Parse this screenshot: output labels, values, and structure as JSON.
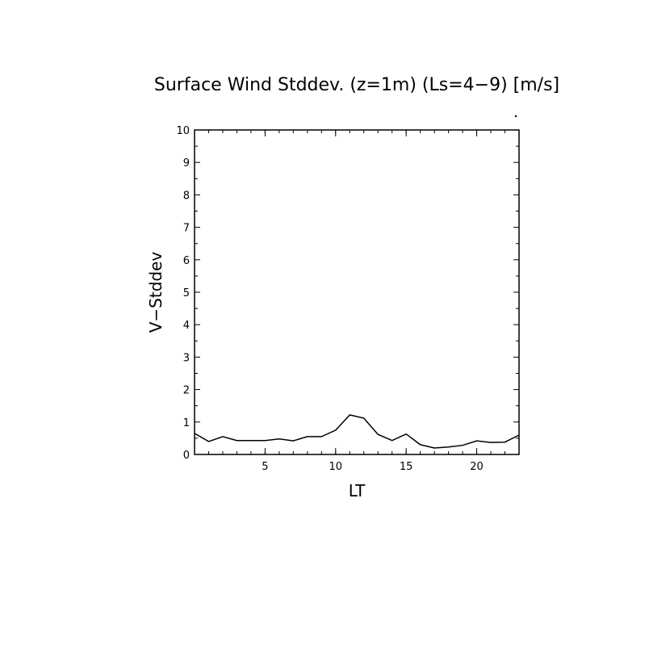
{
  "chart_data": {
    "type": "line",
    "title": "Surface Wind Stddev. (z=1m) (Ls=4−9) [m/s]",
    "xlabel": "LT",
    "ylabel": "V−Stddev",
    "xlim": [
      0,
      23
    ],
    "ylim": [
      0,
      10
    ],
    "xticks": [
      5,
      10,
      15,
      20
    ],
    "yticks": [
      0,
      1,
      2,
      3,
      4,
      5,
      6,
      7,
      8,
      9,
      10
    ],
    "grid": false,
    "series": [
      {
        "x": [
          0,
          1,
          2,
          3,
          4,
          5,
          6,
          7,
          8,
          9,
          10,
          11,
          12,
          13,
          14,
          15,
          16,
          17,
          18,
          19,
          20,
          21,
          22,
          23
        ],
        "y": [
          0.65,
          0.4,
          0.55,
          0.43,
          0.43,
          0.43,
          0.48,
          0.42,
          0.55,
          0.55,
          0.75,
          1.22,
          1.12,
          0.62,
          0.43,
          0.63,
          0.3,
          0.2,
          0.23,
          0.28,
          0.42,
          0.37,
          0.38,
          0.6
        ]
      }
    ]
  }
}
